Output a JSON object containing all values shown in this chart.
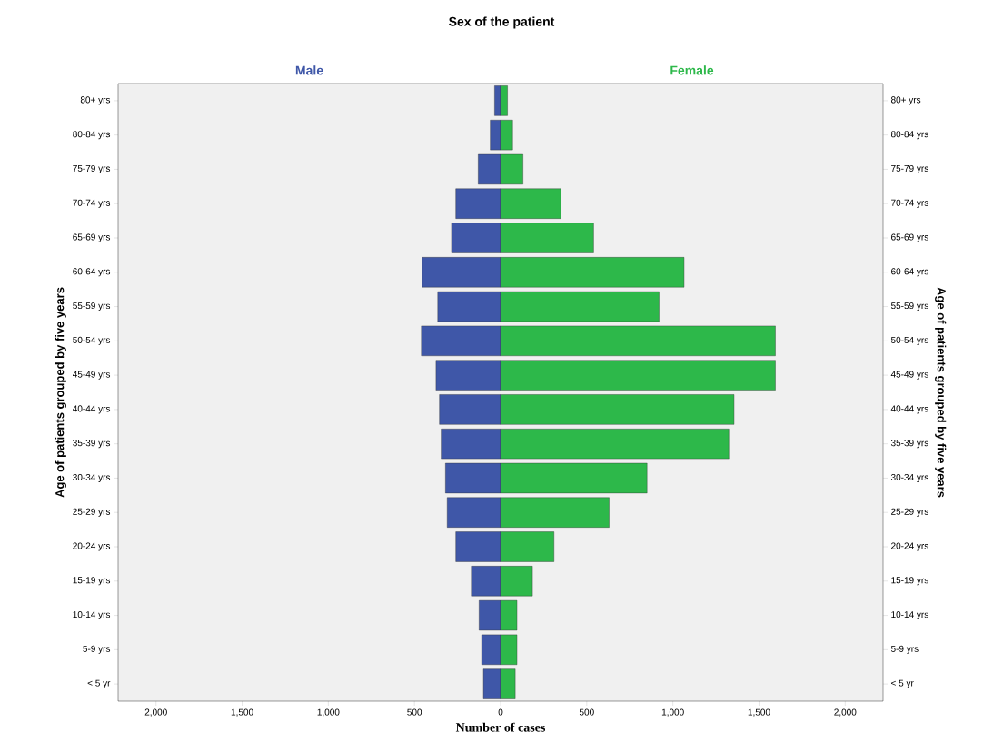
{
  "chart_data": {
    "type": "bar",
    "orientation": "horizontal",
    "stacked": true,
    "title": "Sex of the patient",
    "xlabel": "Number of cases",
    "ylabel": "Age of patients grouped by five years",
    "y2label": "Age of patients grouped by five years",
    "categories": [
      "80+ yrs",
      "80-84 yrs",
      "75-79 yrs",
      "70-74 yrs",
      "65-69 yrs",
      "60-64 yrs",
      "55-59 yrs",
      "50-54 yrs",
      "45-49 yrs",
      "40-44 yrs",
      "35-39 yrs",
      "30-34 yrs",
      "25-29 yrs",
      "20-24 yrs",
      "15-19 yrs",
      "10-14 yrs",
      "5-9 yrs",
      "< 5 yr"
    ],
    "series": [
      {
        "name": "Male",
        "color": "#3f57a8",
        "values": [
          -35,
          -60,
          -130,
          -260,
          -285,
          -455,
          -365,
          -460,
          -375,
          -355,
          -345,
          -320,
          -310,
          -260,
          -170,
          -125,
          -110,
          -100
        ]
      },
      {
        "name": "Female",
        "color": "#2db84a",
        "values": [
          40,
          70,
          130,
          350,
          540,
          1065,
          920,
          1595,
          1595,
          1355,
          1325,
          850,
          630,
          310,
          185,
          95,
          95,
          85
        ]
      }
    ],
    "xlim": [
      -2220,
      2220
    ],
    "xticks": [
      {
        "value": -2000,
        "label": "2,000"
      },
      {
        "value": -1500,
        "label": "1,500"
      },
      {
        "value": -1000,
        "label": "1,000"
      },
      {
        "value": -500,
        "label": "500"
      },
      0,
      500,
      {
        "value": 1000,
        "label": "1,000"
      },
      {
        "value": 1500,
        "label": "1,500"
      },
      {
        "value": 2000,
        "label": "2,000"
      }
    ]
  }
}
